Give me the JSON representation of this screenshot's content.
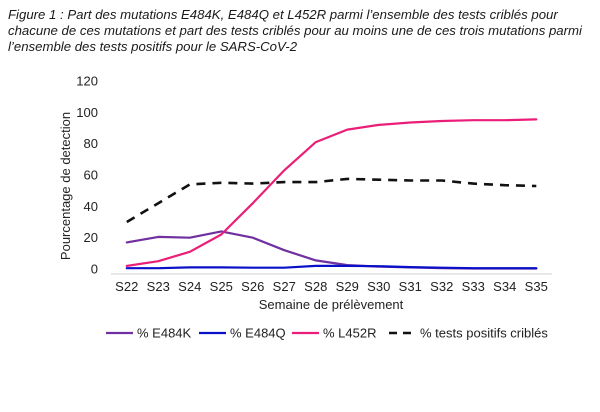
{
  "caption": "Figure 1 : Part des mutations E484K, E484Q et L452R parmi l’ensemble des tests criblés pour chacune de ces mutations et part des tests criblés pour au moins une de ces trois mutations parmi l’ensemble des tests positifs pour le SARS-CoV-2",
  "chart_data": {
    "type": "line",
    "xlabel": "Semaine de prélèvement",
    "ylabel": "Pourcentage de detection",
    "ylim": [
      0,
      120
    ],
    "yticks": [
      0,
      20,
      40,
      60,
      80,
      100,
      120
    ],
    "grid": false,
    "legend_position": "bottom",
    "categories": [
      "S22",
      "S23",
      "S24",
      "S25",
      "S26",
      "S27",
      "S28",
      "S29",
      "S30",
      "S31",
      "S32",
      "S33",
      "S34",
      "S35"
    ],
    "series": [
      {
        "name": "% E484K",
        "color": "#7030a0",
        "dash": "solid",
        "values": [
          17,
          20.5,
          20,
          24,
          20,
          12,
          5.5,
          2.5,
          1.5,
          1,
          0.5,
          0.3,
          0.3,
          0.3
        ]
      },
      {
        "name": "% E484Q",
        "color": "#0a10c8",
        "dash": "solid",
        "values": [
          0.5,
          0.5,
          1,
          1,
          0.8,
          0.8,
          2,
          2,
          1.8,
          1.2,
          0.8,
          0.5,
          0.5,
          0.5
        ]
      },
      {
        "name": "% L452R",
        "color": "#ea1e78",
        "dash": "solid",
        "values": [
          2,
          5,
          11,
          22,
          42,
          63,
          81,
          89,
          92,
          93.5,
          94.5,
          95,
          95,
          95.5
        ]
      },
      {
        "name": "% tests positifs criblés",
        "color": "#111111",
        "dash": "dashed",
        "values": [
          30,
          42,
          54,
          55,
          54.5,
          55.5,
          55.5,
          57.5,
          57,
          56.5,
          56.5,
          54.5,
          53.5,
          53
        ]
      }
    ]
  }
}
